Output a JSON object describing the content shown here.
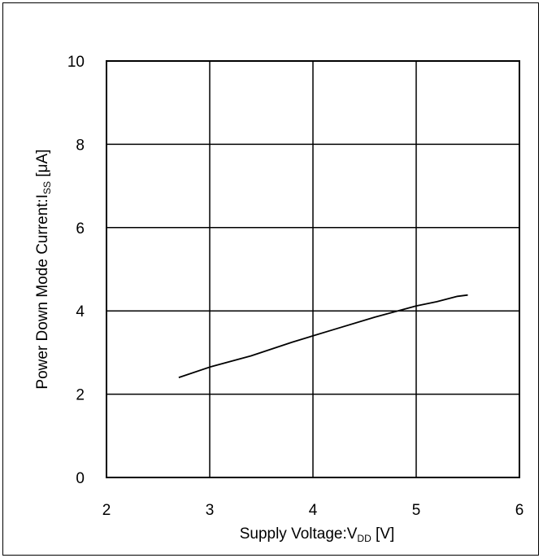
{
  "chart_data": {
    "type": "line",
    "xlabel": {
      "main": "Supply Voltage:V",
      "sub": "DD",
      "unit": " [V]"
    },
    "ylabel": {
      "main": "Power Down Mode Current:I",
      "sub": "SS",
      "unit": " [μA]"
    },
    "xlim": [
      2,
      6
    ],
    "ylim": [
      0,
      10
    ],
    "xticks": [
      "2",
      "3",
      "4",
      "5",
      "6"
    ],
    "yticks": [
      "0",
      "2",
      "4",
      "6",
      "8",
      "10"
    ],
    "grid": true,
    "series": [
      {
        "x": [
          2.7,
          3.0,
          3.4,
          3.8,
          4.2,
          4.6,
          5.0,
          5.2,
          5.4,
          5.5
        ],
        "y": [
          2.4,
          2.65,
          2.92,
          3.25,
          3.55,
          3.85,
          4.12,
          4.22,
          4.35,
          4.38
        ]
      }
    ]
  }
}
